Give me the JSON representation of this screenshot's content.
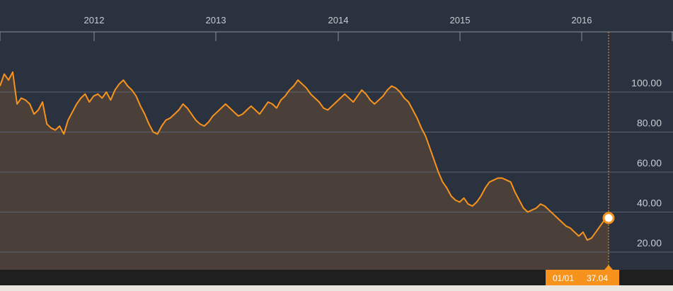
{
  "chart_data": {
    "type": "area",
    "x_ticks": [
      "2012",
      "2013",
      "2014",
      "2015",
      "2016"
    ],
    "y_ticks": [
      "100.00",
      "80.00",
      "60.00",
      "40.00",
      "20.00"
    ],
    "ylim": [
      10,
      125
    ],
    "grid": true,
    "series": [
      {
        "values": [
          103,
          109,
          106,
          110,
          94,
          97,
          96,
          94,
          89,
          91,
          95,
          84,
          82,
          81,
          83,
          79,
          86,
          90,
          94,
          97,
          99,
          95,
          98,
          99,
          97,
          100,
          96,
          101,
          104,
          106,
          103,
          101,
          98,
          93,
          89,
          84,
          80,
          79,
          83,
          86,
          87,
          89,
          91,
          94,
          92,
          89,
          86,
          84,
          83,
          85,
          88,
          90,
          92,
          94,
          92,
          90,
          88,
          89,
          91,
          93,
          91,
          89,
          92,
          95,
          94,
          92,
          96,
          98,
          101,
          103,
          106,
          104,
          102,
          99,
          97,
          95,
          92,
          91,
          93,
          95,
          97,
          99,
          97,
          95,
          98,
          101,
          99,
          96,
          94,
          96,
          98,
          101,
          103,
          102,
          100,
          97,
          95,
          91,
          87,
          82,
          78,
          72,
          66,
          60,
          55,
          52,
          48,
          46,
          45,
          47,
          44,
          43,
          45,
          48,
          52,
          55,
          56,
          57,
          57,
          56,
          55,
          50,
          46,
          42,
          40,
          41,
          42,
          44,
          43,
          41,
          39,
          37,
          35,
          33,
          32,
          30,
          28,
          30,
          26,
          27,
          30,
          33,
          36,
          37.04
        ]
      }
    ],
    "marker": {
      "index": 143,
      "date_label": "01/01",
      "value_label": "37.04"
    },
    "colors": {
      "background": "#2a3240",
      "line": "#f7931d",
      "area": "#4a4039",
      "grid": "#5c6270",
      "footer": "#1f1f1f",
      "tooltip": "#f7931d"
    }
  }
}
